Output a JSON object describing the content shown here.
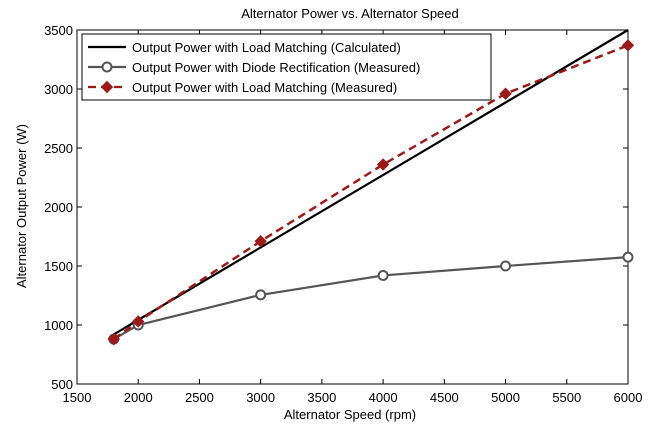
{
  "chart_data": {
    "type": "line",
    "title": "Alternator Power vs. Alternator Speed",
    "xlabel": "Alternator Speed (rpm)",
    "ylabel": "Alternator Output Power (W)",
    "xlim": [
      1500,
      6000
    ],
    "ylim": [
      500,
      3500
    ],
    "x_ticks": [
      1500,
      2000,
      2500,
      3000,
      3500,
      4000,
      4500,
      5000,
      5500,
      6000
    ],
    "y_ticks": [
      500,
      1000,
      1500,
      2000,
      2500,
      3000,
      3500
    ],
    "grid": false,
    "legend_position": "top-left",
    "series": [
      {
        "name": "Output Power with Load Matching (Calculated)",
        "color": "#000000",
        "style": "solid",
        "marker": "none",
        "x": [
          1800,
          6000
        ],
        "y": [
          920,
          3500
        ]
      },
      {
        "name": "Output Power with Diode Rectification (Measured)",
        "color": "#555555",
        "style": "solid",
        "marker": "circle",
        "x": [
          1800,
          2000,
          3000,
          4000,
          5000,
          6000
        ],
        "y": [
          880,
          1000,
          1255,
          1420,
          1500,
          1575
        ]
      },
      {
        "name": "Output Power with Load Matching (Measured)",
        "color": "#9b1b1b",
        "style": "dashed",
        "marker": "diamond",
        "x": [
          1800,
          2000,
          3000,
          4000,
          5000,
          6000
        ],
        "y": [
          880,
          1030,
          1710,
          2360,
          2960,
          3370
        ]
      }
    ]
  }
}
